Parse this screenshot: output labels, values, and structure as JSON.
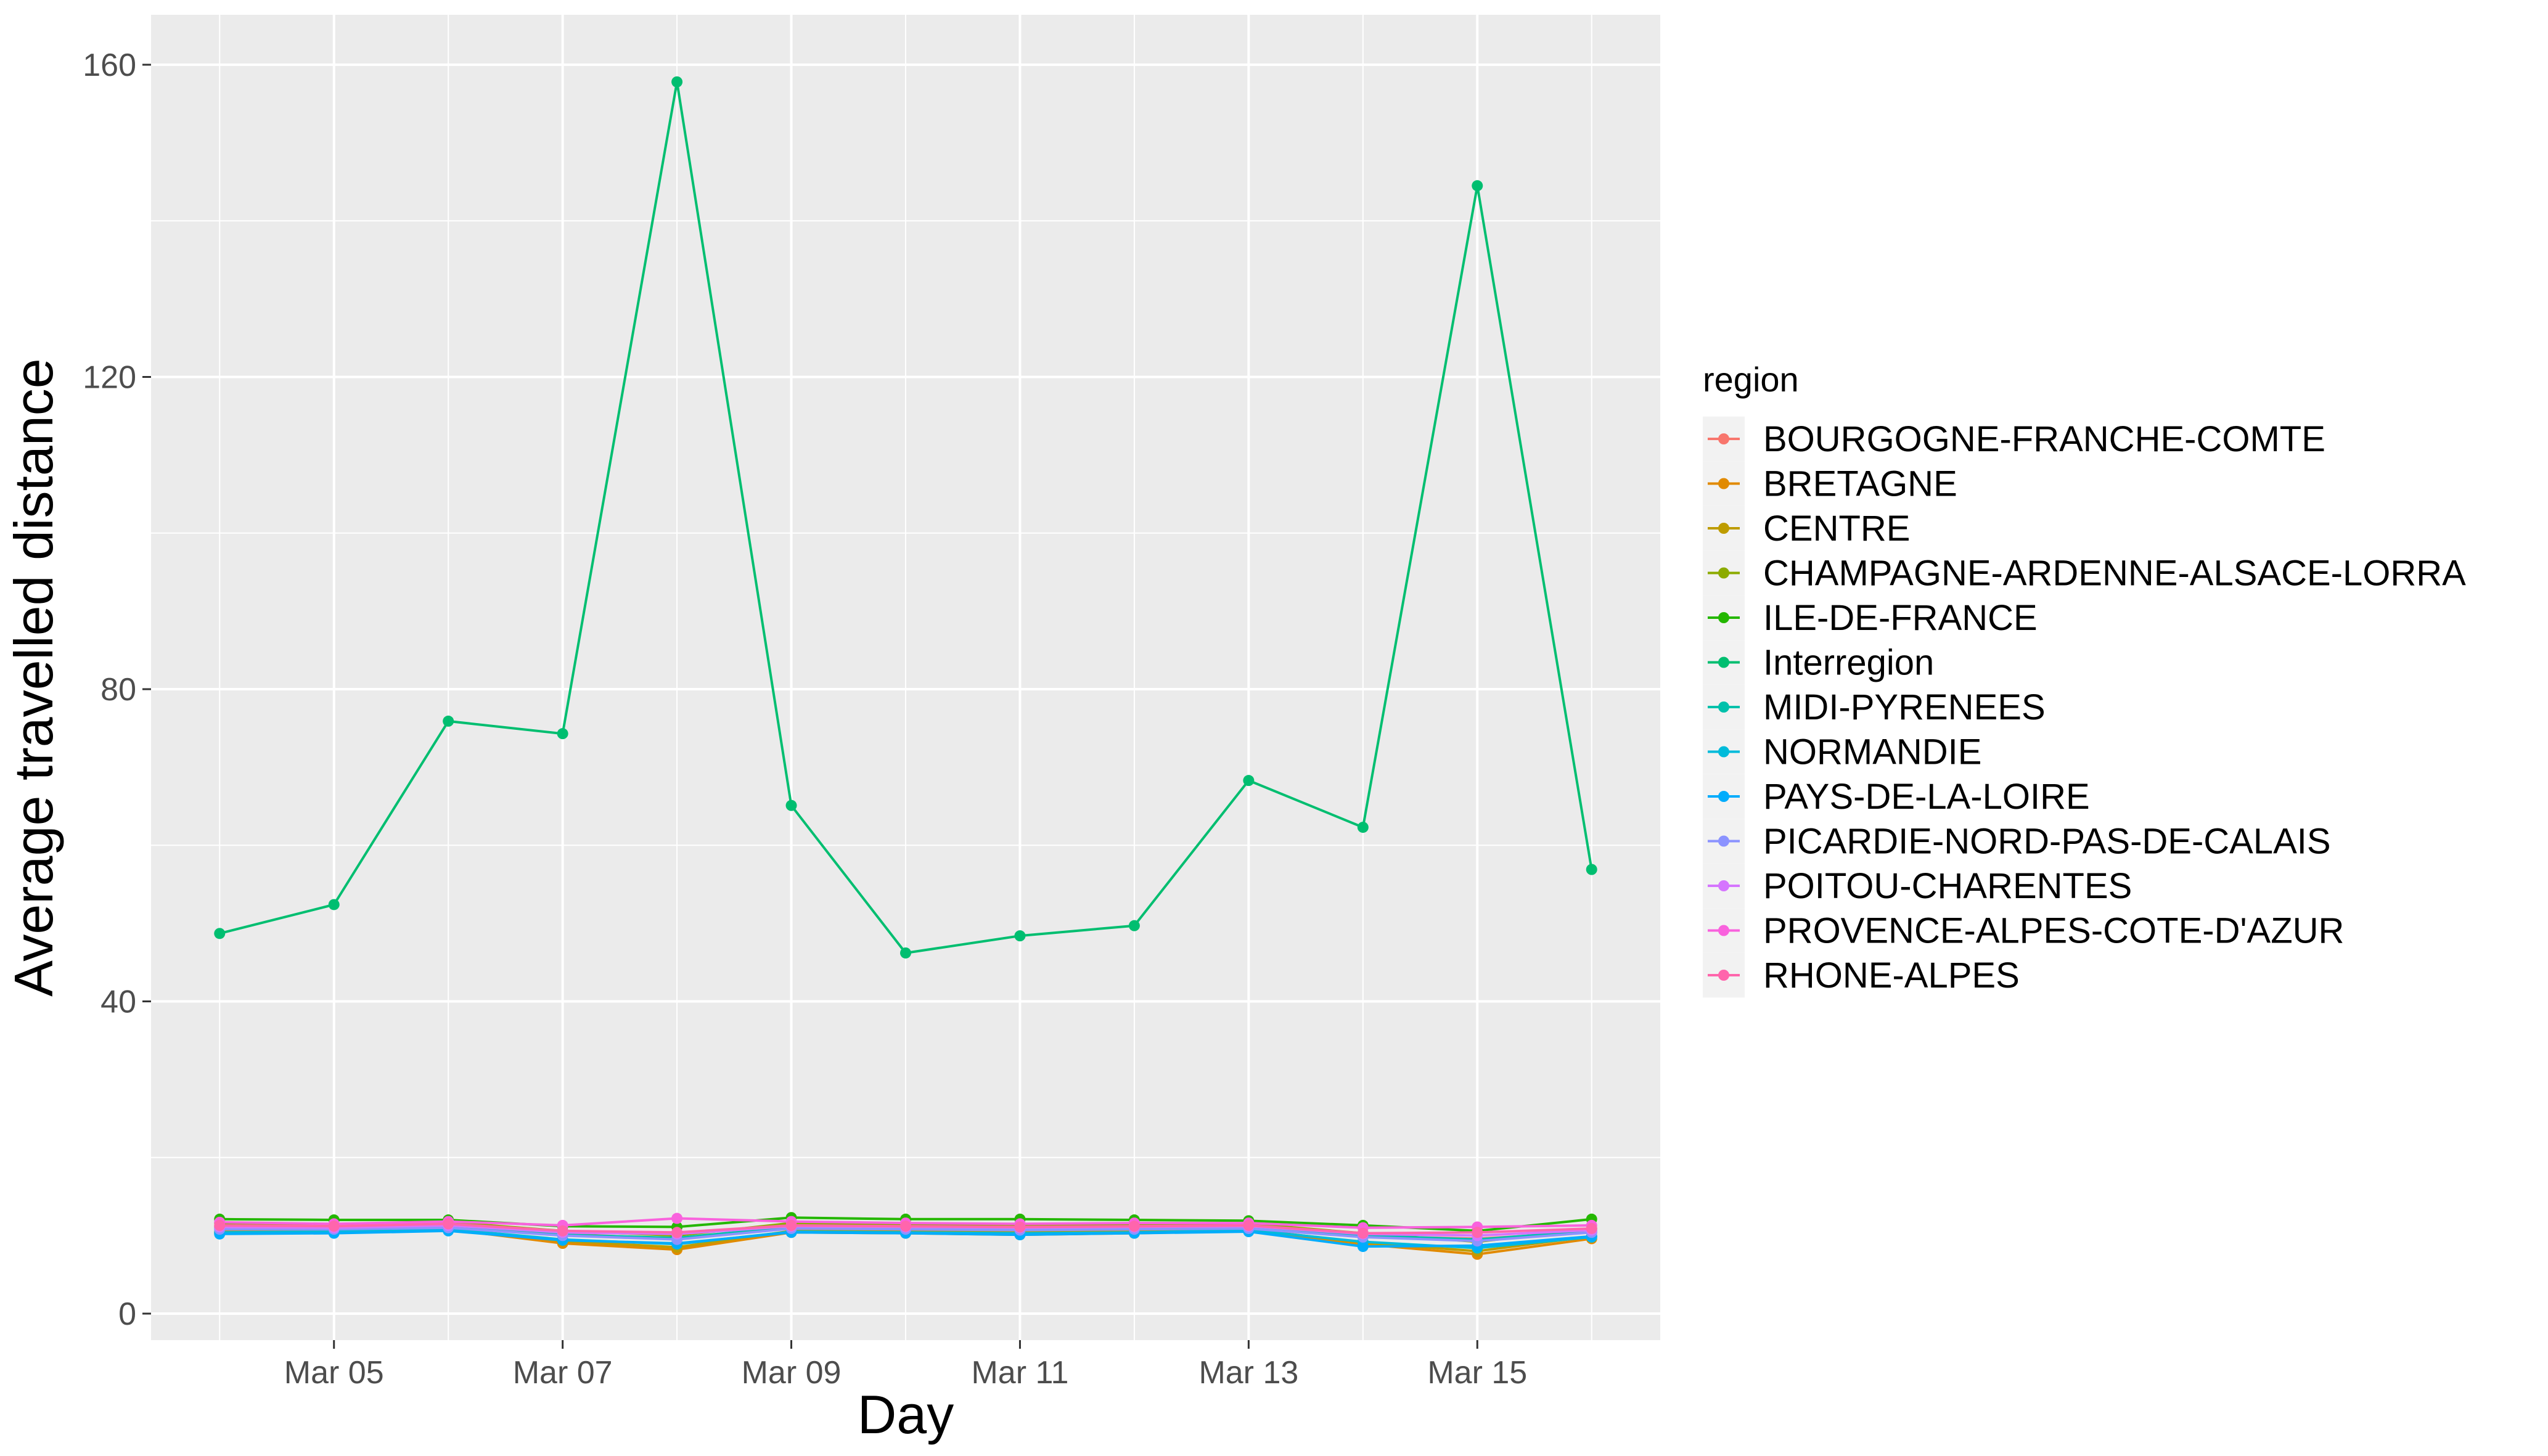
{
  "chart_data": {
    "type": "line",
    "xlabel": "Day",
    "ylabel": "Average travelled distance",
    "ylim": [
      0,
      163
    ],
    "yticks": [
      0,
      40,
      80,
      120,
      160
    ],
    "x": [
      "Mar 04",
      "Mar 05",
      "Mar 06",
      "Mar 07",
      "Mar 08",
      "Mar 09",
      "Mar 10",
      "Mar 11",
      "Mar 12",
      "Mar 13",
      "Mar 14",
      "Mar 15",
      "Mar 16"
    ],
    "xticks": [
      "Mar 05",
      "Mar 07",
      "Mar 09",
      "Mar 11",
      "Mar 13",
      "Mar 15"
    ],
    "grid": true,
    "legend": {
      "title": "region",
      "position": "right"
    },
    "series": [
      {
        "name": "BOURGOGNE-FRANCHE-COMTE",
        "color": "#F8766D",
        "values": [
          11.2,
          11.0,
          11.3,
          10.2,
          9.6,
          11.1,
          11.0,
          10.9,
          11.0,
          11.1,
          9.9,
          9.6,
          10.4
        ]
      },
      {
        "name": "BRETAGNE",
        "color": "#E18A00",
        "values": [
          10.3,
          10.4,
          10.8,
          9.0,
          8.2,
          10.4,
          10.3,
          10.1,
          10.3,
          10.6,
          8.9,
          7.6,
          9.6
        ]
      },
      {
        "name": "CENTRE",
        "color": "#BE9C00",
        "values": [
          10.5,
          10.6,
          10.9,
          9.3,
          8.5,
          10.6,
          10.6,
          10.4,
          10.5,
          10.8,
          9.1,
          8.0,
          9.9
        ]
      },
      {
        "name": "CHAMPAGNE-ARDENNE-ALSACE-LORRA",
        "color": "#8CAB00",
        "values": [
          11.6,
          11.4,
          11.7,
          10.6,
          10.0,
          11.6,
          11.4,
          11.3,
          11.4,
          11.5,
          10.3,
          9.2,
          10.9
        ]
      },
      {
        "name": "ILE-DE-FRANCE",
        "color": "#24B700",
        "values": [
          12.1,
          12.0,
          12.0,
          11.2,
          11.1,
          12.3,
          12.1,
          12.1,
          12.0,
          11.9,
          11.3,
          10.6,
          12.1
        ]
      },
      {
        "name": "Interregion",
        "color": "#00BE70",
        "values": [
          48.7,
          52.4,
          75.9,
          74.3,
          157.8,
          65.1,
          46.2,
          48.4,
          49.7,
          68.3,
          62.3,
          144.5,
          56.9
        ]
      },
      {
        "name": "MIDI-PYRENEES",
        "color": "#00C1AB",
        "values": [
          11.0,
          10.9,
          11.2,
          10.1,
          9.7,
          11.1,
          10.9,
          10.8,
          10.9,
          11.0,
          10.0,
          9.5,
          10.6
        ]
      },
      {
        "name": "NORMANDIE",
        "color": "#00BBDA",
        "values": [
          10.4,
          10.5,
          10.8,
          9.5,
          8.9,
          10.5,
          10.4,
          10.3,
          10.4,
          10.7,
          9.2,
          8.4,
          9.8
        ]
      },
      {
        "name": "PAYS-DE-LA-LOIRE",
        "color": "#00ACFC",
        "values": [
          10.2,
          10.3,
          10.6,
          9.4,
          9.0,
          10.4,
          10.3,
          10.1,
          10.3,
          10.5,
          8.6,
          8.7,
          9.9
        ]
      },
      {
        "name": "PICARDIE-NORD-PAS-DE-CALAIS",
        "color": "#8B93FF",
        "values": [
          10.8,
          10.8,
          11.0,
          10.0,
          9.5,
          10.9,
          10.8,
          10.7,
          10.8,
          10.9,
          9.8,
          9.3,
          10.4
        ]
      },
      {
        "name": "POITOU-CHARENTES",
        "color": "#D575FE",
        "values": [
          11.1,
          11.0,
          11.3,
          10.4,
          10.2,
          11.2,
          11.1,
          11.0,
          11.1,
          11.2,
          10.2,
          10.0,
          10.7
        ]
      },
      {
        "name": "PROVENCE-ALPES-COTE-D'AZUR",
        "color": "#F962DD",
        "values": [
          11.7,
          11.5,
          11.8,
          11.3,
          12.2,
          11.8,
          11.6,
          11.5,
          11.6,
          11.6,
          11.0,
          11.1,
          11.3
        ]
      },
      {
        "name": "RHONE-ALPES",
        "color": "#FF65AC",
        "values": [
          11.3,
          11.2,
          11.5,
          10.6,
          10.4,
          11.3,
          11.2,
          11.1,
          11.2,
          11.3,
          10.3,
          10.4,
          10.9
        ]
      }
    ]
  }
}
